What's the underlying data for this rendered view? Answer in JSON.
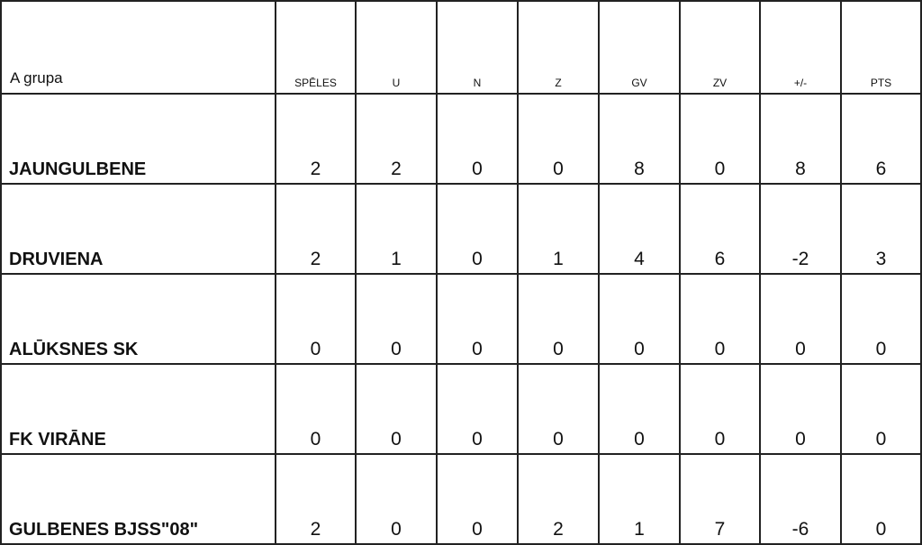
{
  "table": {
    "group_label": "A grupa",
    "columns": [
      "SPĒLES",
      "U",
      "N",
      "Z",
      "GV",
      "ZV",
      "+/-",
      "PTS"
    ],
    "rows": [
      {
        "team": "JAUNGULBENE",
        "values": [
          "2",
          "2",
          "0",
          "0",
          "8",
          "0",
          "8",
          "6"
        ]
      },
      {
        "team": "DRUVIENA",
        "values": [
          "2",
          "1",
          "0",
          "1",
          "4",
          "6",
          "-2",
          "3"
        ]
      },
      {
        "team": "ALŪKSNES SK",
        "values": [
          "0",
          "0",
          "0",
          "0",
          "0",
          "0",
          "0",
          "0"
        ]
      },
      {
        "team": "FK VIRĀNE",
        "values": [
          "0",
          "0",
          "0",
          "0",
          "0",
          "0",
          "0",
          "0"
        ]
      },
      {
        "team": "GULBENES BJSS\"08\"",
        "values": [
          "2",
          "0",
          "0",
          "2",
          "1",
          "7",
          "-6",
          "0"
        ]
      }
    ]
  }
}
